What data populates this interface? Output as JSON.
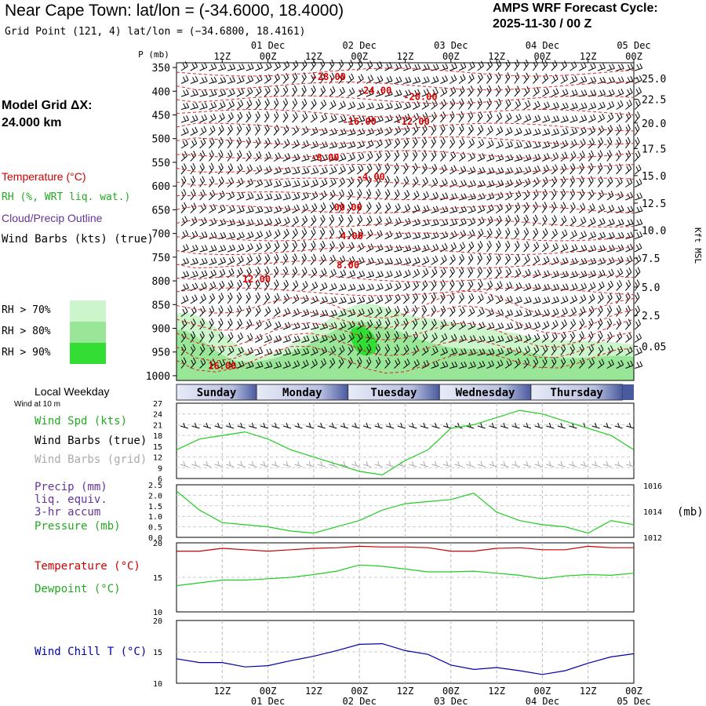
{
  "header": {
    "title": "Near Cape Town:  lat/lon = (-34.6000, 18.4000)",
    "grid_point": "Grid Point (121, 4) lat/lon = (−34.6800, 18.4161)",
    "cycle_label": "AMPS WRF Forecast Cycle:",
    "cycle_value": "2025-11-30 / 00  Z",
    "model_grid_label": "Model Grid ΔX:",
    "model_grid_value": " 24.000 km"
  },
  "legend": {
    "temperature": "Temperature (°C)",
    "rh": "RH (%, WRT liq. wat.)",
    "cloud": "Cloud/Precip Outline",
    "wind_barbs": "Wind Barbs (kts) (true)",
    "rh_levels": [
      {
        "label": "RH > 70%",
        "color": "#ccf5cc"
      },
      {
        "label": "RH > 80%",
        "color": "#99e699"
      },
      {
        "label": "RH > 90%",
        "color": "#33dd33"
      }
    ],
    "weekday_title": "Local Weekday",
    "wind_note": "Wind at 10 m",
    "wind_speed": "Wind Spd (kts)",
    "wind_barbs_true": "Wind Barbs (true)",
    "wind_barbs_grid": "Wind Barbs (grid)",
    "precip": "Precip (mm)",
    "precip2": "liq. equiv.",
    "precip3": "3-hr accum",
    "pressure": "Pressure (mb)",
    "temperature2": "Temperature (°C)",
    "dewpoint": "Dewpoint (°C)",
    "windchill": "Wind Chill T (°C)"
  },
  "colors": {
    "temp": "#cc0000",
    "green": "#22cc22",
    "blue": "#0000aa",
    "purple": "#663399",
    "grid_gray": "#999999",
    "day_bar": "#4a5a9e"
  },
  "chart_data": [
    {
      "type": "time-height cross-section",
      "x_hours": [
        0,
        120
      ],
      "time_ticks_top": [
        "12Z",
        "00Z",
        "12Z",
        "00Z",
        "12Z",
        "00Z",
        "12Z",
        "00Z",
        "12Z",
        "00Z"
      ],
      "date_labels": [
        "01 Dec",
        "02 Dec",
        "03 Dec",
        "04 Dec",
        "05 Dec"
      ],
      "pressure_label": "P (mb)",
      "pressure_ticks": [
        350,
        400,
        450,
        500,
        550,
        600,
        650,
        700,
        750,
        800,
        850,
        900,
        950,
        1000
      ],
      "height_label": "Kft MSL",
      "height_ticks": [
        "25.0",
        "22.5",
        "20.0",
        "17.5",
        "15.0",
        "12.5",
        "10.0",
        "7.5",
        "5.0",
        "2.5",
        "0.05"
      ],
      "height_tick_pressures": [
        373,
        417,
        467,
        521,
        578,
        636,
        693,
        752,
        813,
        873,
        938
      ],
      "temperature_contour_labels": [
        {
          "label": "-28.00",
          "hour": 40,
          "p": 370
        },
        {
          "label": "-24.00",
          "hour": 52,
          "p": 399
        },
        {
          "label": "-20.00",
          "hour": 64,
          "p": 412
        },
        {
          "label": "-16.00",
          "hour": 48,
          "p": 464
        },
        {
          "label": "-12.00",
          "hour": 62,
          "p": 464
        },
        {
          "label": "-8.00",
          "hour": 39,
          "p": 540
        },
        {
          "label": "-4.00",
          "hour": 51,
          "p": 581
        },
        {
          "label": "00.00",
          "hour": 45,
          "p": 645
        },
        {
          "label": "4.00",
          "hour": 46,
          "p": 706
        },
        {
          "label": "8.00",
          "hour": 45,
          "p": 767
        },
        {
          "label": "12.00",
          "hour": 21,
          "p": 797
        },
        {
          "label": "16.00",
          "hour": 12,
          "p": 979
        }
      ]
    },
    {
      "type": "day-bar",
      "days": [
        {
          "name": "Sunday",
          "start": 0,
          "end": 21
        },
        {
          "name": "Monday",
          "start": 21,
          "end": 45
        },
        {
          "name": "Tuesday",
          "start": 45,
          "end": 69
        },
        {
          "name": "Wednesday",
          "start": 69,
          "end": 93
        },
        {
          "name": "Thursday",
          "start": 93,
          "end": 117
        }
      ]
    },
    {
      "type": "line",
      "title": "Wind Spd (kts)",
      "ylim": [
        6,
        27
      ],
      "yticks": [
        6,
        9,
        12,
        15,
        18,
        21,
        24,
        27
      ],
      "x": [
        0,
        6,
        12,
        18,
        24,
        30,
        36,
        42,
        48,
        54,
        60,
        66,
        72,
        78,
        84,
        90,
        96,
        102,
        108,
        114,
        120
      ],
      "values": [
        14,
        17,
        18,
        19,
        17,
        14,
        12,
        10,
        8,
        7,
        11,
        14,
        20,
        21,
        23,
        25,
        24,
        22,
        20,
        18,
        14
      ]
    },
    {
      "type": "line",
      "title": "Precip (mm) / Pressure (mb)",
      "ylim": [
        0,
        2.5
      ],
      "yticks": [
        0.0,
        0.5,
        1.0,
        1.5,
        2.0,
        2.5
      ],
      "right_ticks": [
        "1016",
        "1014",
        "1012"
      ],
      "right_label": "(mb)",
      "x": [
        0,
        6,
        12,
        18,
        24,
        30,
        36,
        42,
        48,
        54,
        60,
        66,
        72,
        78,
        84,
        90,
        96,
        102,
        108,
        114,
        120
      ],
      "values": [
        2.2,
        1.3,
        0.7,
        0.6,
        0.5,
        0.3,
        0.2,
        0.5,
        0.8,
        1.3,
        1.6,
        1.7,
        1.8,
        2.1,
        1.2,
        0.8,
        0.6,
        0.5,
        0.2,
        0.8,
        0.6
      ]
    },
    {
      "type": "line",
      "title": "Temperature / Dewpoint (°C)",
      "ylim": [
        10,
        20
      ],
      "yticks": [
        10,
        15,
        20
      ],
      "x": [
        0,
        6,
        12,
        18,
        24,
        30,
        36,
        42,
        48,
        54,
        60,
        66,
        72,
        78,
        84,
        90,
        96,
        102,
        108,
        114,
        120
      ],
      "series": [
        {
          "name": "Temperature",
          "color": "#cc0000",
          "values": [
            18.8,
            18.8,
            19.2,
            19.0,
            18.8,
            19.0,
            19.2,
            19.3,
            19.5,
            19.4,
            19.4,
            19.3,
            18.8,
            18.8,
            19.2,
            19.3,
            19.0,
            19.0,
            19.5,
            19.3,
            19.3
          ]
        },
        {
          "name": "Dewpoint",
          "color": "#22cc22",
          "values": [
            13.8,
            14.2,
            14.6,
            14.6,
            14.8,
            15.0,
            15.4,
            15.9,
            16.8,
            16.6,
            16.2,
            15.8,
            15.8,
            15.9,
            15.6,
            15.3,
            14.8,
            15.2,
            15.4,
            15.3,
            15.6
          ]
        }
      ]
    },
    {
      "type": "line",
      "title": "Wind Chill T (°C)",
      "ylim": [
        10,
        20
      ],
      "yticks": [
        10,
        15,
        20
      ],
      "x": [
        0,
        6,
        12,
        18,
        24,
        30,
        36,
        42,
        48,
        54,
        60,
        66,
        72,
        78,
        84,
        90,
        96,
        102,
        108,
        114,
        120
      ],
      "values": [
        13.9,
        13.3,
        13.3,
        12.6,
        12.8,
        13.6,
        14.3,
        15.2,
        16.2,
        16.3,
        15.2,
        14.6,
        12.9,
        12.2,
        12.5,
        12.0,
        11.4,
        12.0,
        13.2,
        14.2,
        14.7
      ]
    }
  ]
}
